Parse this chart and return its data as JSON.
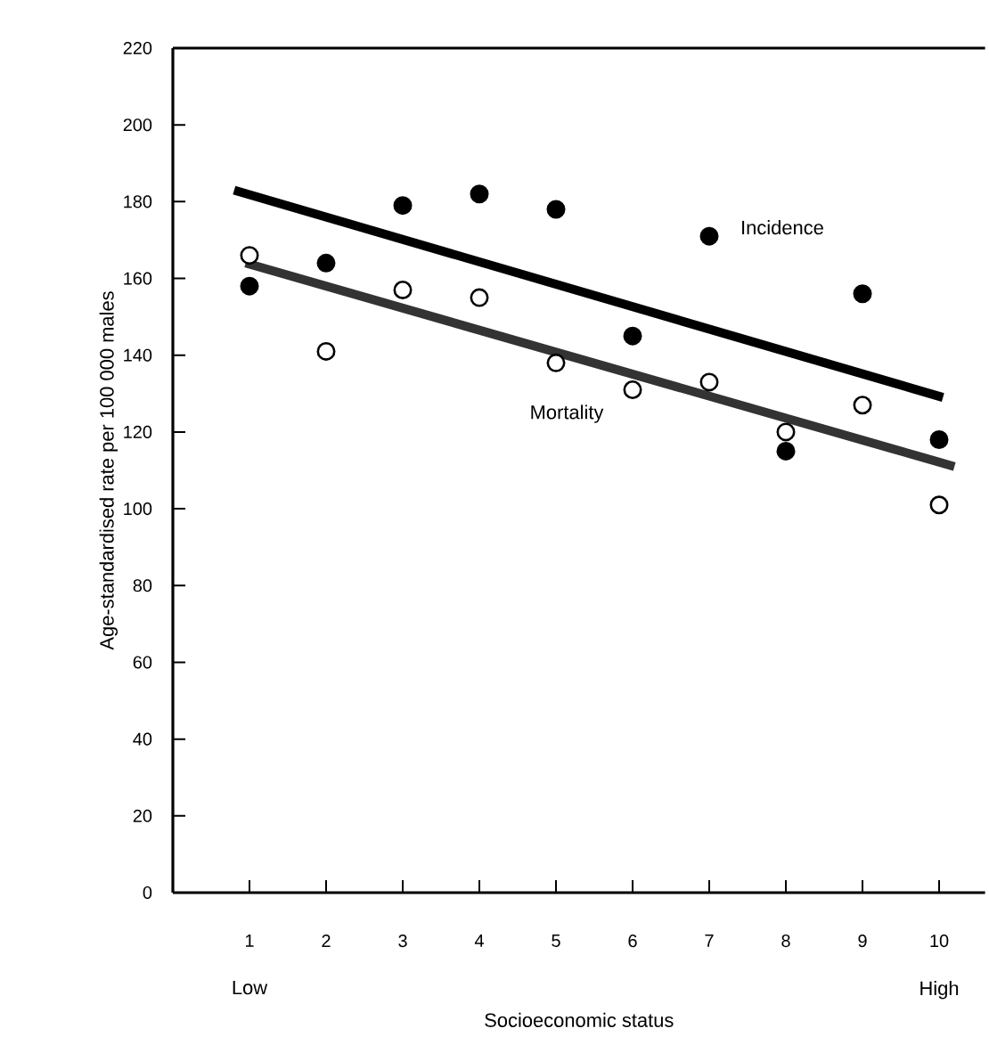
{
  "chart_data": {
    "type": "scatter",
    "xlabel": "Socioeconomic status",
    "ylabel": "Age-standardised rate per 100 000 males",
    "xlim": [
      0,
      10.6
    ],
    "xticks": [
      1,
      2,
      3,
      4,
      5,
      6,
      7,
      8,
      9,
      10
    ],
    "ylim": [
      0,
      220
    ],
    "yticks": [
      0,
      20,
      40,
      60,
      80,
      100,
      120,
      140,
      160,
      180,
      200,
      220
    ],
    "annotations": [
      "Low",
      "High"
    ],
    "series": [
      {
        "name": "Incidence",
        "color": "#000000",
        "x": [
          1,
          2,
          3,
          4,
          5,
          6,
          7,
          8,
          9,
          10
        ],
        "values": [
          158,
          164,
          179,
          182,
          178,
          145,
          171,
          115,
          156,
          118
        ]
      },
      {
        "name": "Mortality",
        "color": "#ffffff",
        "x": [
          1,
          2,
          3,
          4,
          5,
          6,
          7,
          8,
          9,
          10
        ],
        "values": [
          166,
          141,
          157,
          155,
          138,
          131,
          133,
          120,
          127,
          101
        ]
      },
      {
        "type": "line",
        "color": "#000000",
        "x": [
          0.8,
          10.05
        ],
        "values": [
          183,
          129
        ]
      },
      {
        "type": "line",
        "color": "#333333",
        "x": [
          0.95,
          10.2
        ],
        "values": [
          164,
          111
        ]
      }
    ]
  }
}
